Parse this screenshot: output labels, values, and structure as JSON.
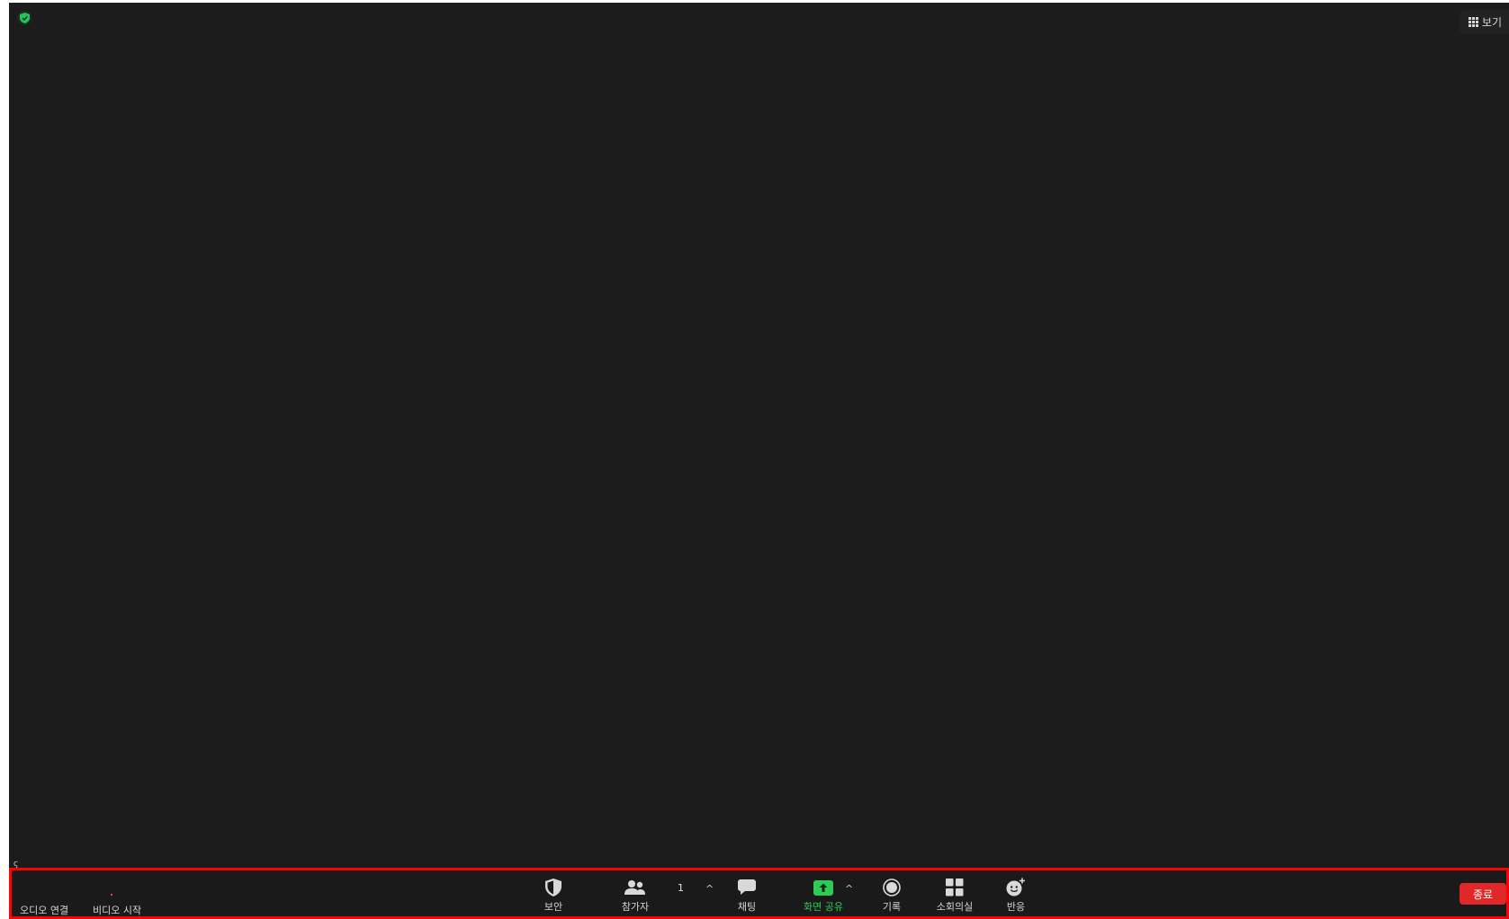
{
  "header": {
    "view_label": "보기",
    "shield_icon": "shield-check-icon",
    "view_icon": "grid-icon"
  },
  "overlay": {
    "marker_text": "ς"
  },
  "toolbar": {
    "audio_label": "오디오 연결",
    "video_label": "비디오 시작",
    "security_label": "보안",
    "participants_label": "참가자",
    "participants_count": "1",
    "caret": "^",
    "chat_label": "채팅",
    "share_label": "화면 공유",
    "record_label": "기록",
    "breakout_label": "소회의실",
    "reactions_label": "반응",
    "end_label": "종료"
  },
  "colors": {
    "background": "#1c1c1c",
    "toolbar": "#1a1a1a",
    "accent_green": "#2ecc55",
    "end_red": "#e02828",
    "highlight_border": "#ff0000"
  }
}
